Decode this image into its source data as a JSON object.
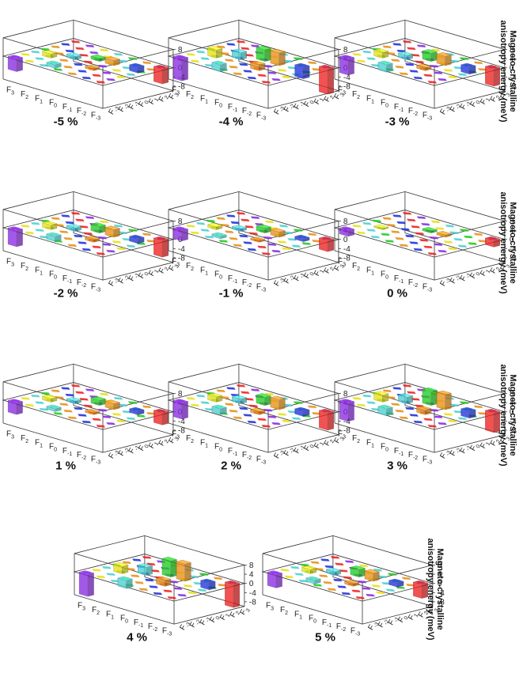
{
  "figure": {
    "z_axis_label_line1": "Magneto-crystalline",
    "z_axis_label_line2": "anisotropy energy (meV)"
  },
  "chart_data": {
    "type": "3d-bar",
    "shared": {
      "x_ticks": [
        {
          "base": "F",
          "sub": "3"
        },
        {
          "base": "F",
          "sub": "2"
        },
        {
          "base": "F",
          "sub": "1"
        },
        {
          "base": "F",
          "sub": "0"
        },
        {
          "base": "F",
          "sub": "-1"
        },
        {
          "base": "F",
          "sub": "-2"
        },
        {
          "base": "F",
          "sub": "-3"
        }
      ],
      "y_ticks": [
        {
          "base": "F",
          "sub": "-3"
        },
        {
          "base": "F",
          "sub": "-2"
        },
        {
          "base": "F",
          "sub": "-1"
        },
        {
          "base": "F",
          "sub": "0"
        },
        {
          "base": "F",
          "sub": "1"
        },
        {
          "base": "F",
          "sub": "2"
        },
        {
          "base": "F",
          "sub": "3"
        }
      ],
      "z_ticks": [
        "8",
        "4",
        "0",
        "-4",
        "-8"
      ],
      "z_range": [
        -10,
        8
      ],
      "colors": {
        "F3": "#8a2be2",
        "F2": "#e8e01a",
        "F1": "#4dd0d0",
        "F0": "#22cc22",
        "F-1": "#e8901a",
        "F-2": "#2233dd",
        "F-3": "#ee2222"
      }
    },
    "panels": [
      {
        "caption": "-5 %",
        "bars": [
          {
            "i": 0,
            "j": 0,
            "v": -5.5
          },
          {
            "i": 1,
            "j": 2,
            "v": 1.8
          },
          {
            "i": 2,
            "j": 1,
            "v": -1.5
          },
          {
            "i": 2,
            "j": 3,
            "v": 1.4
          },
          {
            "i": 3,
            "j": 4,
            "v": 1.2
          },
          {
            "i": 4,
            "j": 2,
            "v": 0.8
          },
          {
            "i": 4,
            "j": 4,
            "v": 2.2
          },
          {
            "i": 5,
            "j": 5,
            "v": -2.5
          },
          {
            "i": 6,
            "j": 6,
            "v": -6.5
          }
        ]
      },
      {
        "caption": "-4 %",
        "bars": [
          {
            "i": 0,
            "j": 0,
            "v": -9.5
          },
          {
            "i": 1,
            "j": 2,
            "v": 3.5
          },
          {
            "i": 2,
            "j": 1,
            "v": -3.0
          },
          {
            "i": 2,
            "j": 3,
            "v": 3.0
          },
          {
            "i": 3,
            "j": 4,
            "v": 5.0
          },
          {
            "i": 4,
            "j": 2,
            "v": 2.5
          },
          {
            "i": 4,
            "j": 4,
            "v": 5.5
          },
          {
            "i": 5,
            "j": 5,
            "v": -5.0
          },
          {
            "i": 6,
            "j": 6,
            "v": -11.0
          }
        ]
      },
      {
        "caption": "-3 %",
        "bars": [
          {
            "i": 0,
            "j": 0,
            "v": -7.0
          },
          {
            "i": 1,
            "j": 2,
            "v": 2.4
          },
          {
            "i": 2,
            "j": 1,
            "v": -3.2
          },
          {
            "i": 2,
            "j": 3,
            "v": 1.8
          },
          {
            "i": 3,
            "j": 4,
            "v": 3.5
          },
          {
            "i": 4,
            "j": 2,
            "v": 1.2
          },
          {
            "i": 4,
            "j": 4,
            "v": 4.0
          },
          {
            "i": 5,
            "j": 5,
            "v": -3.0
          },
          {
            "i": 6,
            "j": 6,
            "v": -7.5
          }
        ]
      },
      {
        "caption": "-2 %",
        "bars": [
          {
            "i": 0,
            "j": 0,
            "v": -7.0
          },
          {
            "i": 1,
            "j": 2,
            "v": 2.0
          },
          {
            "i": 2,
            "j": 1,
            "v": -2.2
          },
          {
            "i": 2,
            "j": 3,
            "v": 1.5
          },
          {
            "i": 3,
            "j": 4,
            "v": 2.8
          },
          {
            "i": 4,
            "j": 2,
            "v": 1.0
          },
          {
            "i": 4,
            "j": 4,
            "v": 3.2
          },
          {
            "i": 5,
            "j": 5,
            "v": -2.0
          },
          {
            "i": 6,
            "j": 6,
            "v": -7.2
          }
        ]
      },
      {
        "caption": "-1 %",
        "bars": [
          {
            "i": 0,
            "j": 0,
            "v": -4.5
          },
          {
            "i": 1,
            "j": 2,
            "v": 1.2
          },
          {
            "i": 2,
            "j": 1,
            "v": -1.0
          },
          {
            "i": 2,
            "j": 3,
            "v": 1.0
          },
          {
            "i": 3,
            "j": 4,
            "v": 2.0
          },
          {
            "i": 4,
            "j": 2,
            "v": 0.6
          },
          {
            "i": 4,
            "j": 4,
            "v": 2.2
          },
          {
            "i": 5,
            "j": 5,
            "v": -1.2
          },
          {
            "i": 6,
            "j": 6,
            "v": -4.8
          }
        ]
      },
      {
        "caption": "0 %",
        "bars": [
          {
            "i": 0,
            "j": 0,
            "v": -2.5
          },
          {
            "i": 1,
            "j": 2,
            "v": 0.5
          },
          {
            "i": 3,
            "j": 4,
            "v": 0.8
          },
          {
            "i": 4,
            "j": 4,
            "v": 0.9
          },
          {
            "i": 6,
            "j": 6,
            "v": -2.8
          }
        ]
      },
      {
        "caption": "1 %",
        "bars": [
          {
            "i": 0,
            "j": 0,
            "v": -5.0
          },
          {
            "i": 1,
            "j": 2,
            "v": 1.5
          },
          {
            "i": 2,
            "j": 1,
            "v": -1.2
          },
          {
            "i": 2,
            "j": 3,
            "v": 1.1
          },
          {
            "i": 3,
            "j": 4,
            "v": 2.2
          },
          {
            "i": 4,
            "j": 2,
            "v": 0.7
          },
          {
            "i": 4,
            "j": 4,
            "v": 2.5
          },
          {
            "i": 5,
            "j": 5,
            "v": -1.5
          },
          {
            "i": 6,
            "j": 6,
            "v": -5.2
          }
        ]
      },
      {
        "caption": "2 %",
        "bars": [
          {
            "i": 0,
            "j": 0,
            "v": -7.0
          },
          {
            "i": 1,
            "j": 2,
            "v": 2.2
          },
          {
            "i": 2,
            "j": 1,
            "v": -2.5
          },
          {
            "i": 2,
            "j": 3,
            "v": 2.0
          },
          {
            "i": 3,
            "j": 4,
            "v": 3.5
          },
          {
            "i": 4,
            "j": 2,
            "v": 1.2
          },
          {
            "i": 4,
            "j": 4,
            "v": 4.2
          },
          {
            "i": 5,
            "j": 5,
            "v": -2.2
          },
          {
            "i": 6,
            "j": 6,
            "v": -7.5
          }
        ]
      },
      {
        "caption": "3 %",
        "bars": [
          {
            "i": 0,
            "j": 0,
            "v": -8.0
          },
          {
            "i": 1,
            "j": 2,
            "v": 3.0
          },
          {
            "i": 2,
            "j": 1,
            "v": -3.0
          },
          {
            "i": 2,
            "j": 3,
            "v": 2.8
          },
          {
            "i": 3,
            "j": 4,
            "v": 6.0
          },
          {
            "i": 4,
            "j": 2,
            "v": 2.0
          },
          {
            "i": 4,
            "j": 4,
            "v": 6.5
          },
          {
            "i": 5,
            "j": 5,
            "v": -3.0
          },
          {
            "i": 6,
            "j": 6,
            "v": -8.5
          }
        ]
      },
      {
        "caption": "4 %",
        "bars": [
          {
            "i": 0,
            "j": 0,
            "v": -9.5
          },
          {
            "i": 1,
            "j": 2,
            "v": 3.2
          },
          {
            "i": 2,
            "j": 1,
            "v": -3.5
          },
          {
            "i": 2,
            "j": 3,
            "v": 3.5
          },
          {
            "i": 3,
            "j": 4,
            "v": 7.0
          },
          {
            "i": 4,
            "j": 2,
            "v": 2.5
          },
          {
            "i": 4,
            "j": 4,
            "v": 7.5
          },
          {
            "i": 5,
            "j": 5,
            "v": -3.0
          },
          {
            "i": 6,
            "j": 6,
            "v": -10.0
          }
        ]
      },
      {
        "caption": "5 %",
        "bars": [
          {
            "i": 0,
            "j": 0,
            "v": -5.8
          },
          {
            "i": 1,
            "j": 2,
            "v": 1.8
          },
          {
            "i": 2,
            "j": 1,
            "v": -1.5
          },
          {
            "i": 2,
            "j": 3,
            "v": 1.6
          },
          {
            "i": 3,
            "j": 4,
            "v": 3.2
          },
          {
            "i": 4,
            "j": 2,
            "v": 1.0
          },
          {
            "i": 4,
            "j": 4,
            "v": 3.5
          },
          {
            "i": 5,
            "j": 5,
            "v": -1.8
          },
          {
            "i": 6,
            "j": 6,
            "v": -6.0
          }
        ]
      }
    ]
  }
}
